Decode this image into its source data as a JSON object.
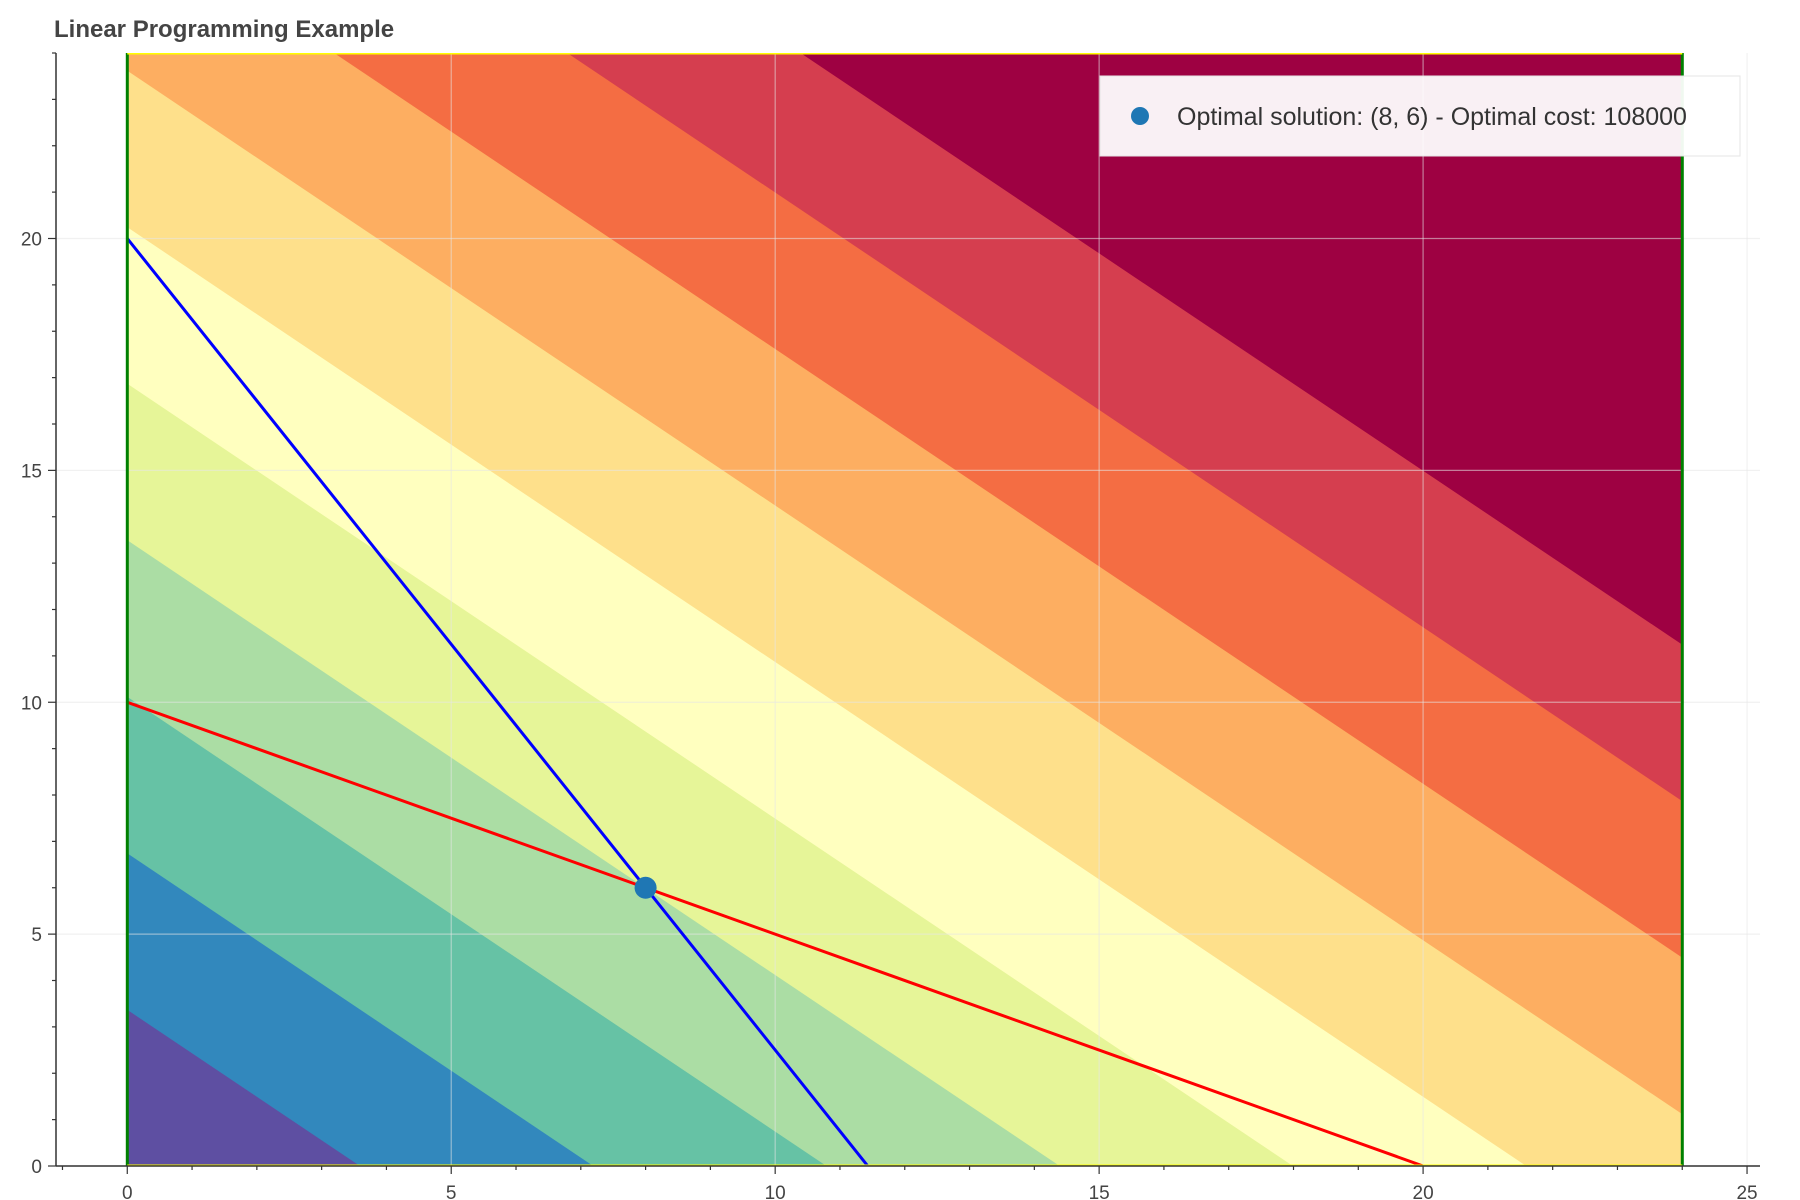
{
  "chart_data": {
    "type": "heatmap",
    "title": "Linear Programming Example",
    "xlabel": "",
    "ylabel": "",
    "xlim": [
      -1.1,
      25.2
    ],
    "ylim": [
      0,
      24
    ],
    "xticks": [
      0,
      5,
      10,
      15,
      20,
      25
    ],
    "yticks": [
      0,
      5,
      10,
      15,
      20
    ],
    "grid": true,
    "legend_position": "top-right",
    "heatmap": {
      "x_range": [
        0,
        24
      ],
      "y_range": [
        0,
        24
      ],
      "cost_per_x": 7500,
      "cost_per_y": 8000,
      "band_width": 27000,
      "palette": [
        "#5e4fa2",
        "#3288bd",
        "#66c2a5",
        "#abdda4",
        "#e6f598",
        "#ffffbf",
        "#fee08b",
        "#fdae61",
        "#f46d43",
        "#d53e4f",
        "#9e0142"
      ]
    },
    "series": [
      {
        "type": "line",
        "color": "#0000ff",
        "x": [
          0,
          11.43
        ],
        "y": [
          20,
          0
        ]
      },
      {
        "type": "line",
        "color": "#ff0000",
        "x": [
          0,
          20
        ],
        "y": [
          10,
          0
        ]
      },
      {
        "type": "line",
        "color": "#008000",
        "x": [
          0,
          0
        ],
        "y": [
          0,
          24
        ]
      },
      {
        "type": "line",
        "color": "#008000",
        "x": [
          24,
          24
        ],
        "y": [
          0,
          24
        ]
      },
      {
        "type": "line",
        "color": "#ffff00",
        "x": [
          0,
          24
        ],
        "y": [
          0,
          0
        ]
      },
      {
        "type": "line",
        "color": "#ffff00",
        "x": [
          0,
          24
        ],
        "y": [
          24,
          24
        ]
      },
      {
        "type": "scatter",
        "name": "Optimal solution: (8, 6) - Optimal cost: 108000",
        "color": "#1f77b4",
        "x": [
          8
        ],
        "y": [
          6
        ]
      }
    ]
  }
}
